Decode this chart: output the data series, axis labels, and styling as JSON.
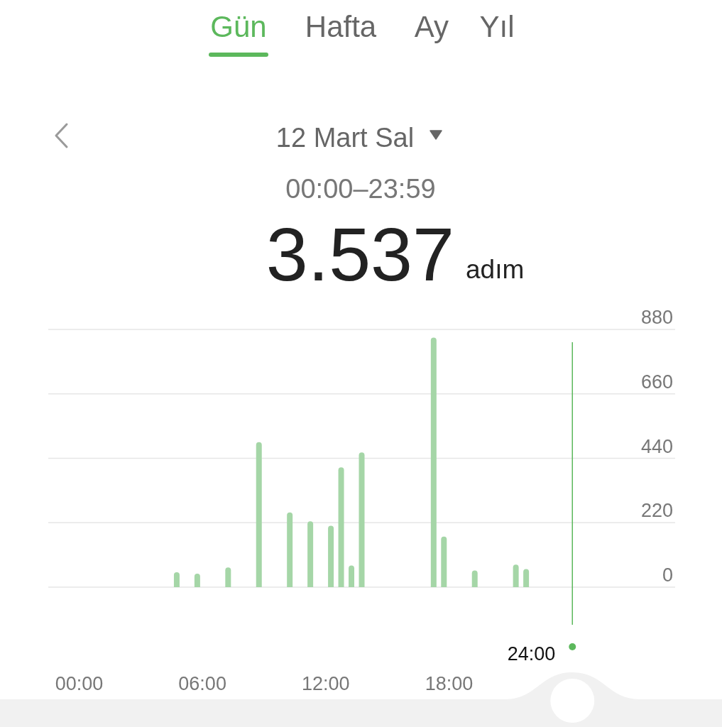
{
  "chart_data": {
    "type": "bar",
    "title": "12 Mart Sal",
    "subtitle": "00:00–23:59",
    "annotations": [
      "Gün",
      "Hafta",
      "Ay",
      "Yıl",
      "3.537",
      "adım"
    ],
    "x": [
      4.75,
      5.75,
      7.25,
      8.75,
      10.25,
      11.25,
      12.25,
      12.75,
      13.25,
      13.75,
      17.25,
      17.75,
      19.25,
      21.25,
      21.75
    ],
    "values": [
      51,
      46,
      67,
      495,
      255,
      225,
      210,
      409,
      74,
      460,
      852,
      173,
      57,
      77,
      62
    ],
    "color": "#a5d6a7",
    "xlim": [
      -1.5,
      29
    ],
    "xticks": [
      {
        "value": 0,
        "label": "00:00"
      },
      {
        "value": 6,
        "label": "06:00"
      },
      {
        "value": 12,
        "label": "12:00"
      },
      {
        "value": 18,
        "label": "18:00"
      }
    ],
    "ylim": [
      0,
      880
    ],
    "yticks": [
      0,
      220,
      440,
      660,
      880
    ],
    "grid": "y",
    "ref_lines": [
      {
        "axis": "x",
        "value": 24,
        "label": "24:00",
        "color": "#5cb85c"
      }
    ]
  }
}
